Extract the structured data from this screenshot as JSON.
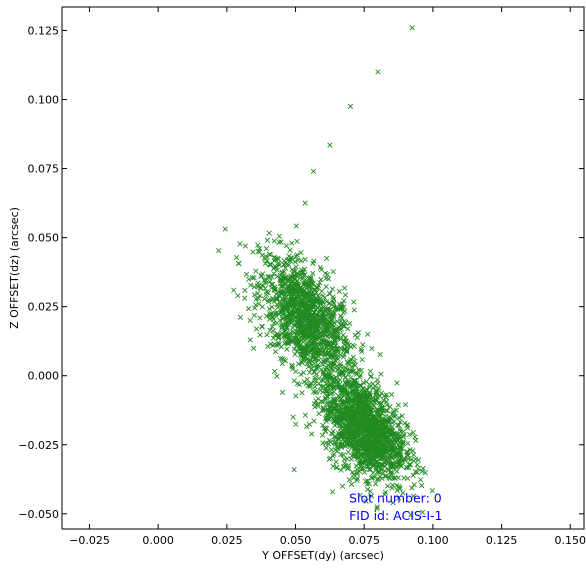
{
  "chart_data": {
    "type": "scatter",
    "title": "",
    "xlabel": "Y OFFSET(dy) (arcsec)",
    "ylabel": "Z OFFSET(dz) (arcsec)",
    "xlim": [
      -0.035,
      0.155
    ],
    "ylim": [
      -0.0555,
      0.1335
    ],
    "xticks": [
      -0.025,
      0.0,
      0.025,
      0.05,
      0.075,
      0.1,
      0.125,
      0.15
    ],
    "xtick_labels": [
      "−0.025",
      "0.000",
      "0.025",
      "0.050",
      "0.075",
      "0.100",
      "0.125",
      "0.150"
    ],
    "yticks": [
      -0.05,
      -0.025,
      0.0,
      0.025,
      0.05,
      0.075,
      0.1,
      0.125
    ],
    "ytick_labels": [
      "−0.050",
      "−0.025",
      "0.000",
      "0.025",
      "0.050",
      "0.075",
      "0.100",
      "0.125"
    ],
    "grid": false,
    "marker": "x",
    "marker_color": "#228b22",
    "series": [
      {
        "clusters": [
          {
            "center": [
              0.054,
              0.02
            ],
            "spread": [
              0.0085,
              0.0115
            ],
            "correlation": -0.55,
            "count": 1300
          },
          {
            "center": [
              0.075,
              -0.019
            ],
            "spread": [
              0.0075,
              0.0095
            ],
            "correlation": -0.45,
            "count": 1500
          }
        ],
        "points": [
          [
            0.0275,
            0.031
          ],
          [
            0.029,
            0.029
          ],
          [
            0.0335,
            0.013
          ],
          [
            0.0335,
            0.02
          ],
          [
            0.0925,
            0.126
          ],
          [
            0.08,
            0.11
          ],
          [
            0.07,
            0.0975
          ],
          [
            0.0625,
            0.0835
          ],
          [
            0.0565,
            0.074
          ],
          [
            0.0535,
            0.0625
          ],
          [
            0.0855,
            -0.046
          ],
          [
            0.0825,
            -0.043
          ],
          [
            0.0895,
            -0.037
          ],
          [
            0.0905,
            -0.018
          ],
          [
            0.0495,
            -0.034
          ],
          [
            0.0635,
            -0.042
          ]
        ]
      }
    ],
    "annotations": [
      {
        "text": "Slot number: 0",
        "color": "#0000ff"
      },
      {
        "text": "FID id: ACIS-I-1",
        "color": "#0000ff"
      }
    ]
  }
}
